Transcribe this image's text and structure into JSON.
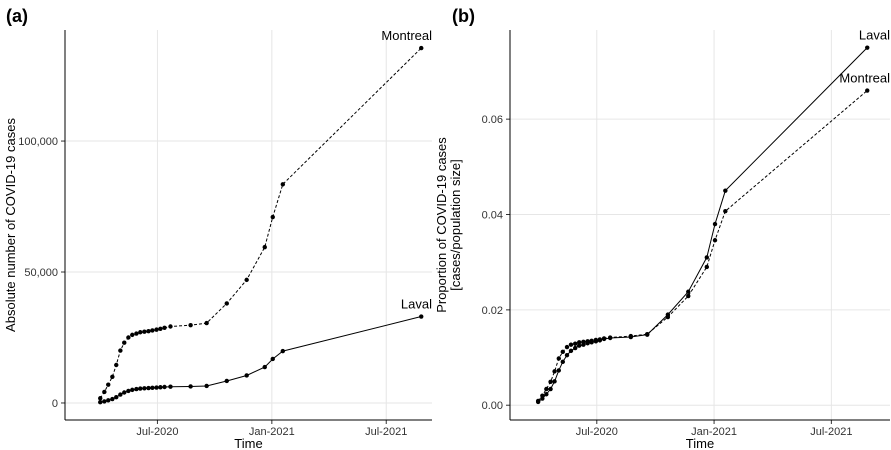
{
  "chart_data": [
    {
      "type": "line",
      "title": "(a)",
      "xlabel": "Time",
      "ylabel": "Absolute number of COVID-19 cases",
      "x": [
        2020.25,
        2020.268,
        2020.285,
        2020.303,
        2020.32,
        2020.338,
        2020.355,
        2020.373,
        2020.39,
        2020.408,
        2020.425,
        2020.443,
        2020.461,
        2020.478,
        2020.496,
        2020.513,
        2020.531,
        2020.557,
        2020.645,
        2020.715,
        2020.803,
        2020.89,
        2020.969,
        2021.004,
        2021.048,
        2021.653
      ],
      "series": [
        {
          "name": "Montreal",
          "color": "#000000",
          "line_style": "dashed",
          "values": [
            1800,
            4200,
            7000,
            10000,
            14500,
            20000,
            23000,
            25000,
            26000,
            26500,
            27000,
            27200,
            27400,
            27700,
            28000,
            28300,
            28700,
            29200,
            29700,
            30500,
            38000,
            47000,
            59500,
            71000,
            83500,
            135500
          ]
        },
        {
          "name": "Laval",
          "color": "#000000",
          "line_style": "solid",
          "values": [
            300,
            600,
            1000,
            1500,
            2200,
            3200,
            4000,
            4600,
            5000,
            5300,
            5500,
            5600,
            5700,
            5800,
            5900,
            6000,
            6100,
            6200,
            6300,
            6500,
            8400,
            10500,
            13700,
            16800,
            19800,
            33000
          ]
        }
      ],
      "xlim": [
        2020.096,
        2021.7
      ],
      "xticks": [
        {
          "value": 2020.5,
          "label": "Jul-2020"
        },
        {
          "value": 2021.0,
          "label": "Jan-2021"
        },
        {
          "value": 2021.5,
          "label": "Jul-2021"
        }
      ],
      "ylim": [
        -6500,
        142400
      ],
      "yticks": [
        0,
        {
          "value": 50000,
          "label": "50,000"
        },
        {
          "value": 100000,
          "label": "100,000"
        }
      ],
      "grid": true
    },
    {
      "type": "line",
      "title": "(b)",
      "xlabel": "Time",
      "ylabel": [
        "Proportion of COVID-19 cases",
        "[cases/population size]"
      ],
      "x": [
        2020.25,
        2020.268,
        2020.285,
        2020.303,
        2020.32,
        2020.338,
        2020.355,
        2020.373,
        2020.39,
        2020.408,
        2020.425,
        2020.443,
        2020.461,
        2020.478,
        2020.496,
        2020.513,
        2020.531,
        2020.557,
        2020.645,
        2020.715,
        2020.803,
        2020.89,
        2020.969,
        2021.004,
        2021.048,
        2021.653
      ],
      "series": [
        {
          "name": "Laval",
          "color": "#000000",
          "line_style": "solid",
          "values": [
            0.0007,
            0.0014,
            0.0023,
            0.0034,
            0.005,
            0.0073,
            0.0091,
            0.0105,
            0.0114,
            0.012,
            0.0125,
            0.0127,
            0.013,
            0.0132,
            0.0134,
            0.0136,
            0.0139,
            0.0141,
            0.0143,
            0.0148,
            0.019,
            0.0238,
            0.031,
            0.038,
            0.045,
            0.075
          ]
        },
        {
          "name": "Montreal",
          "color": "#000000",
          "line_style": "dashed",
          "values": [
            0.0009,
            0.002,
            0.0034,
            0.0049,
            0.0071,
            0.0098,
            0.0112,
            0.0122,
            0.0127,
            0.0129,
            0.0132,
            0.0133,
            0.0134,
            0.0135,
            0.0137,
            0.0138,
            0.014,
            0.0142,
            0.0145,
            0.0149,
            0.0185,
            0.0229,
            0.029,
            0.0346,
            0.0407,
            0.066
          ]
        }
      ],
      "xlim": [
        2020.13,
        2021.75
      ],
      "xticks": [
        {
          "value": 2020.5,
          "label": "Jul-2020"
        },
        {
          "value": 2021.0,
          "label": "Jan-2021"
        },
        {
          "value": 2021.5,
          "label": "Jul-2021"
        }
      ],
      "ylim": [
        -0.0031,
        0.0787
      ],
      "yticks": [
        {
          "value": 0,
          "label": "0.00"
        },
        0.02,
        0.04,
        0.06
      ],
      "grid": true
    }
  ]
}
